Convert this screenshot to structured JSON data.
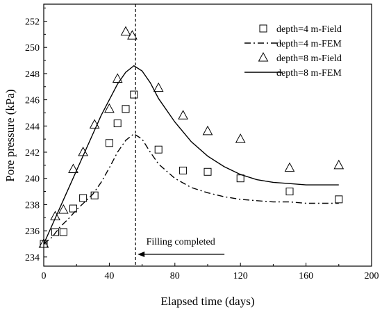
{
  "chart_data": {
    "type": "line",
    "xlabel": "Elapsed time (days)",
    "ylabel": "Pore pressure (kPa)",
    "xlim": [
      0,
      200
    ],
    "ylim": [
      233.3,
      253.3
    ],
    "xticks": [
      0,
      40,
      80,
      120,
      160,
      200
    ],
    "yticks": [
      234,
      236,
      238,
      240,
      242,
      244,
      246,
      248,
      250,
      252
    ],
    "grid": false,
    "legend_position": "top-right",
    "series": [
      {
        "name": "depth=4 m-Field",
        "style": "square-marker",
        "x": [
          0,
          7,
          12,
          18,
          24,
          31,
          40,
          45,
          50,
          55,
          70,
          85,
          100,
          120,
          150,
          180
        ],
        "y": [
          235.0,
          235.9,
          235.9,
          237.7,
          238.5,
          238.7,
          242.7,
          244.2,
          245.3,
          246.4,
          242.2,
          240.6,
          240.5,
          240.0,
          239.0,
          238.4
        ]
      },
      {
        "name": "depth=4 m-FEM",
        "style": "dash-dot-line",
        "x": [
          0,
          5,
          10,
          15,
          20,
          25,
          30,
          35,
          40,
          45,
          50,
          55,
          60,
          65,
          70,
          80,
          90,
          100,
          110,
          120,
          130,
          140,
          150,
          160,
          170,
          180
        ],
        "y": [
          235.0,
          235.5,
          236.3,
          236.9,
          237.6,
          238.2,
          238.8,
          239.7,
          240.8,
          242.0,
          242.9,
          243.4,
          243.0,
          242.0,
          241.1,
          240.0,
          239.3,
          238.9,
          238.6,
          238.4,
          238.3,
          238.2,
          238.2,
          238.1,
          238.1,
          238.1
        ]
      },
      {
        "name": "depth=8 m-Field",
        "style": "triangle-marker",
        "x": [
          0,
          7,
          12,
          18,
          24,
          31,
          40,
          45,
          50,
          54,
          70,
          85,
          100,
          120,
          150,
          180
        ],
        "y": [
          235.0,
          237.1,
          237.6,
          240.7,
          242.0,
          244.1,
          245.3,
          247.6,
          251.2,
          250.9,
          246.9,
          244.8,
          243.6,
          243.0,
          240.8,
          241.0
        ]
      },
      {
        "name": "depth=8 m-FEM",
        "style": "solid-line",
        "x": [
          0,
          5,
          10,
          15,
          20,
          25,
          30,
          35,
          40,
          45,
          50,
          55,
          60,
          65,
          70,
          80,
          90,
          100,
          110,
          120,
          130,
          140,
          150,
          160,
          170,
          180
        ],
        "y": [
          235.0,
          236.4,
          237.8,
          239.2,
          240.6,
          242.0,
          243.4,
          244.8,
          246.0,
          247.2,
          248.1,
          248.6,
          248.2,
          247.3,
          246.1,
          244.3,
          242.8,
          241.7,
          240.9,
          240.3,
          239.9,
          239.7,
          239.6,
          239.5,
          239.5,
          239.5
        ]
      }
    ],
    "annotations": [
      {
        "text": "Filling completed",
        "x": 56
      }
    ]
  },
  "colors": {
    "ink": "#000000",
    "background": "#ffffff"
  }
}
